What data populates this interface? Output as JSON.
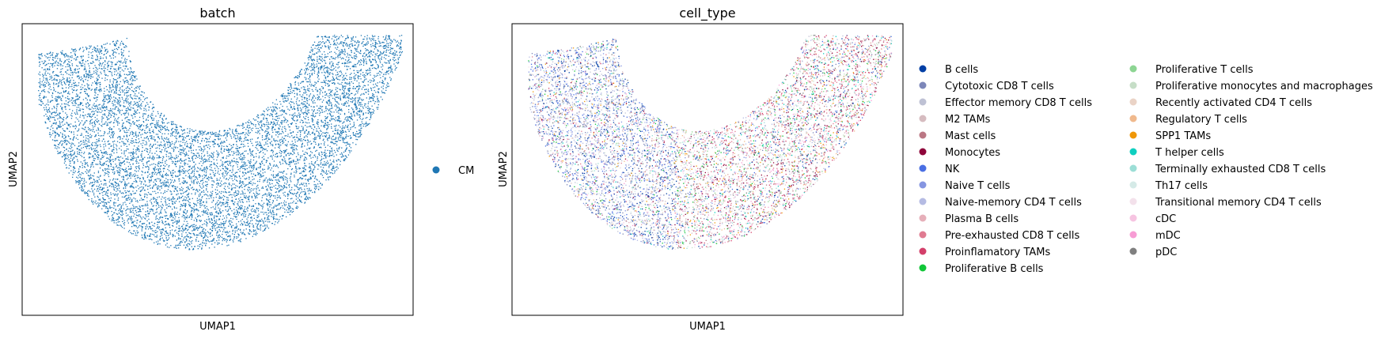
{
  "chart_data": [
    {
      "type": "scatter",
      "title": "batch",
      "xlabel": "UMAP1",
      "ylabel": "UMAP2",
      "grid": false,
      "ticks": false,
      "legend_placement": "right",
      "legend": [
        {
          "label": "CM",
          "color": "#1f77b4"
        }
      ]
    },
    {
      "type": "scatter",
      "title": "cell_type",
      "xlabel": "UMAP1",
      "ylabel": "UMAP2",
      "grid": false,
      "ticks": false,
      "legend_placement": "right",
      "legend": [
        {
          "label": "B cells",
          "color": "#023fa5"
        },
        {
          "label": "Cytotoxic CD8 T cells",
          "color": "#7d87b9"
        },
        {
          "label": "Effector memory CD8 T cells",
          "color": "#bec1d4"
        },
        {
          "label": "M2 TAMs",
          "color": "#d6bcc0"
        },
        {
          "label": "Mast cells",
          "color": "#bb7784"
        },
        {
          "label": "Monocytes",
          "color": "#8e063b"
        },
        {
          "label": "NK",
          "color": "#4a6fe3"
        },
        {
          "label": "Naive T cells",
          "color": "#8595e1"
        },
        {
          "label": "Naive-memory CD4 T cells",
          "color": "#b5bbe3"
        },
        {
          "label": "Plasma B cells",
          "color": "#e6afb9"
        },
        {
          "label": "Pre-exhausted CD8 T cells",
          "color": "#e07b91"
        },
        {
          "label": "Proinflamatory TAMs",
          "color": "#d33f6a"
        },
        {
          "label": "Proliferative B cells",
          "color": "#11c638"
        },
        {
          "label": "Proliferative T cells",
          "color": "#8dd593"
        },
        {
          "label": "Proliferative monocytes and macrophages",
          "color": "#c6dec7"
        },
        {
          "label": "Recently activated CD4 T cells",
          "color": "#ead3c6"
        },
        {
          "label": "Regulatory T cells",
          "color": "#f0b98d"
        },
        {
          "label": "SPP1 TAMs",
          "color": "#ef9708"
        },
        {
          "label": "T helper cells",
          "color": "#0fcfc0"
        },
        {
          "label": "Terminally exhausted CD8 T cells",
          "color": "#9cded6"
        },
        {
          "label": "Th17 cells",
          "color": "#d5eae7"
        },
        {
          "label": "Transitional memory CD4 T cells",
          "color": "#f3e1eb"
        },
        {
          "label": "cDC",
          "color": "#f6c4e1"
        },
        {
          "label": "mDC",
          "color": "#f79cd4"
        },
        {
          "label": "pDC",
          "color": "#7f7f7f"
        }
      ]
    }
  ]
}
